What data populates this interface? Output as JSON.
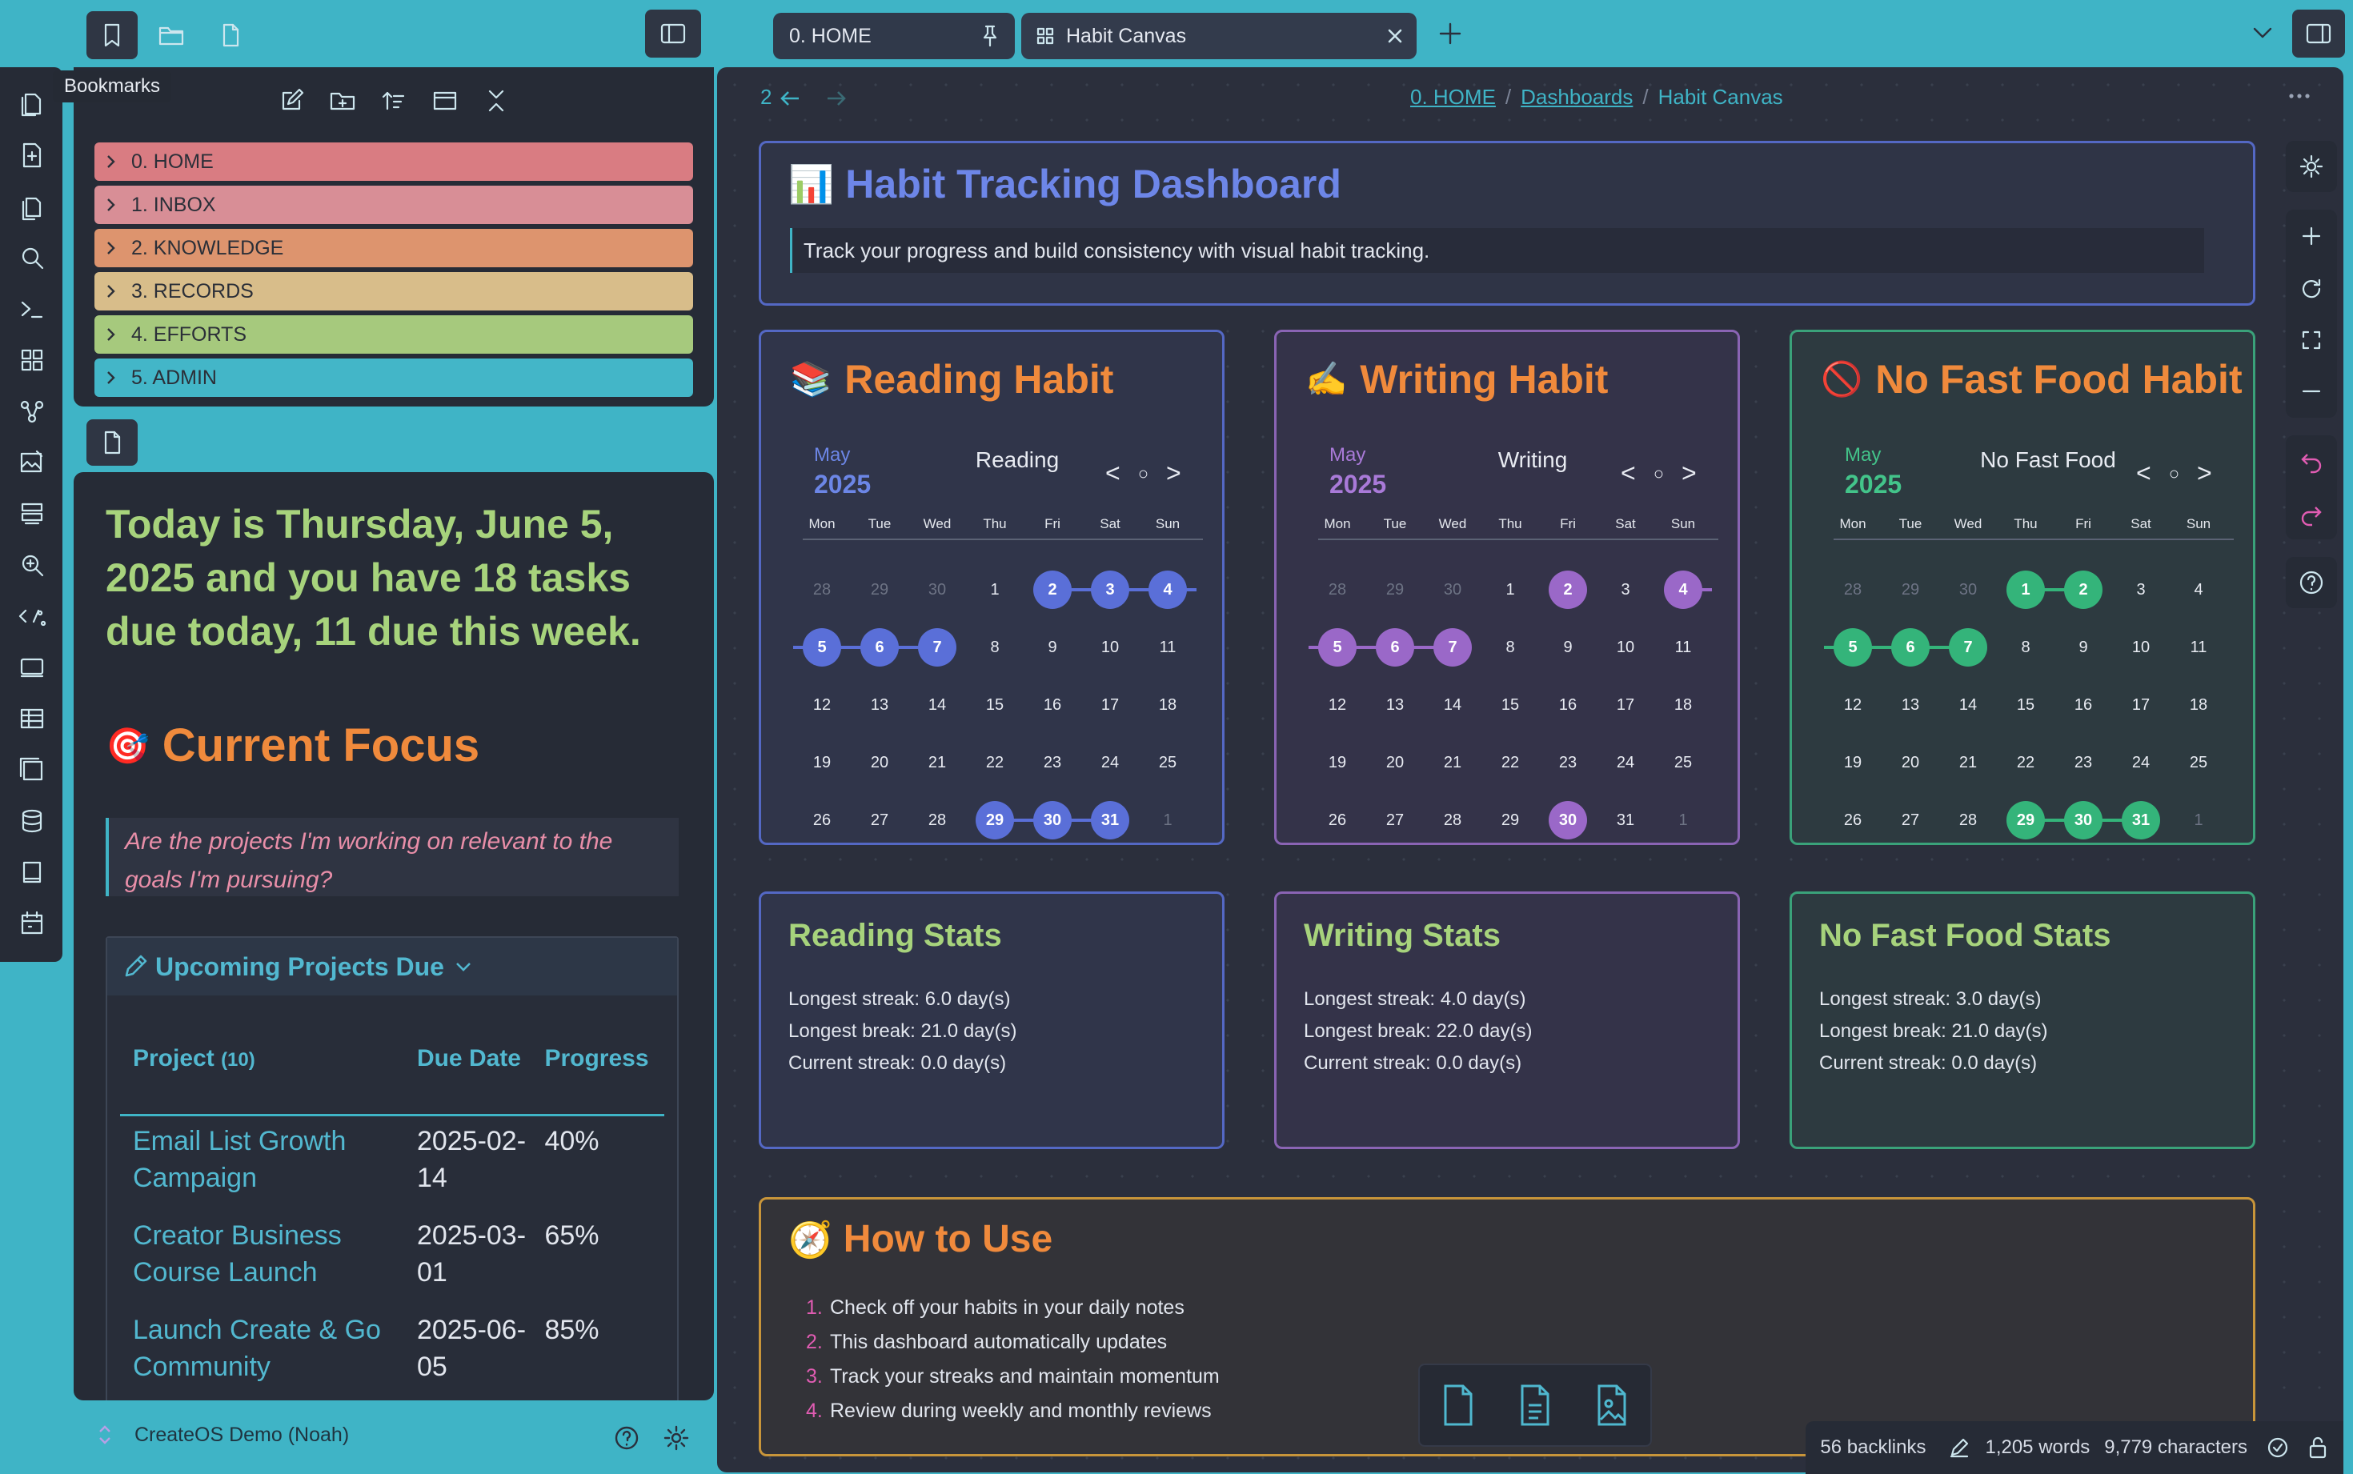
{
  "tooltip": "Bookmarks",
  "tabs": [
    {
      "label": "0. HOME",
      "pinned": true
    },
    {
      "label": "Habit Canvas",
      "closable": true
    }
  ],
  "bookmarks": [
    {
      "label": "0. HOME",
      "color": "#d97c82"
    },
    {
      "label": "1. INBOX",
      "color": "#d88e96"
    },
    {
      "label": "2. KNOWLEDGE",
      "color": "#dd946e"
    },
    {
      "label": "3. RECORDS",
      "color": "#d8bd8a"
    },
    {
      "label": "4. EFFORTS",
      "color": "#a6c97d"
    },
    {
      "label": "5. ADMIN",
      "color": "#43b6c8"
    }
  ],
  "note": {
    "today": "Today is Thursday, June 5, 2025 and you have 18 tasks due today, 11 due this week.",
    "focus_emoji": "🎯",
    "focus_title": "Current Focus",
    "quote": "Are the projects I'm working on relevant to the goals I'm pursuing?",
    "upcoming_title": "Upcoming Projects Due",
    "table": {
      "headers": [
        "Project",
        "Due Date",
        "Progress"
      ],
      "count": "(10)",
      "rows": [
        {
          "project": "Email List Growth Campaign",
          "due": "2025-02-14",
          "progress": "40%"
        },
        {
          "project": "Creator Business Course Launch",
          "due": "2025-03-01",
          "progress": "65%"
        },
        {
          "project": "Launch Create & Go Community",
          "due": "2025-06-05",
          "progress": "85%"
        }
      ]
    }
  },
  "vault_name": "CreateOS Demo (Noah)",
  "nav": {
    "back_count": "2"
  },
  "breadcrumb": [
    "0. HOME",
    "Dashboards",
    "Habit Canvas"
  ],
  "header_card": {
    "emoji": "📊",
    "title": "Habit Tracking Dashboard",
    "subtitle": "Track your progress and build consistency with visual habit tracking."
  },
  "weekdays": [
    "Mon",
    "Tue",
    "Wed",
    "Thu",
    "Fri",
    "Sat",
    "Sun"
  ],
  "habits": [
    {
      "emoji": "📚",
      "title": "Reading Habit",
      "cal_title": "Reading",
      "month": "May",
      "year": "2025",
      "accent": "#5a6fd8",
      "border": "#5468c4",
      "bg": "#30354a",
      "year_color": "#6c86e6",
      "marked": [
        2,
        3,
        4,
        5,
        6,
        7,
        29,
        30,
        31
      ],
      "stats_title": "Reading Stats",
      "stats": [
        "Longest streak: 6.0 day(s)",
        "Longest break: 21.0 day(s)",
        "Current streak: 0.0 day(s)"
      ]
    },
    {
      "emoji": "✍️",
      "title": "Writing Habit",
      "cal_title": "Writing",
      "month": "May",
      "year": "2025",
      "accent": "#9a68c8",
      "border": "#8a64b4",
      "bg": "#343349",
      "year_color": "#a97ad8",
      "marked": [
        2,
        4,
        5,
        6,
        7,
        30
      ],
      "stats_title": "Writing Stats",
      "stats": [
        "Longest streak: 4.0 day(s)",
        "Longest break: 22.0 day(s)",
        "Current streak: 0.0 day(s)"
      ]
    },
    {
      "emoji": "🚫",
      "title": "No Fast Food Habit",
      "cal_title": "No Fast Food",
      "month": "May",
      "year": "2025",
      "accent": "#34b47a",
      "border": "#3aa27a",
      "bg": "#2d3a40",
      "year_color": "#43c48a",
      "marked": [
        1,
        2,
        5,
        6,
        7,
        29,
        30,
        31
      ],
      "stats_title": "No Fast Food Stats",
      "stats": [
        "Longest streak: 3.0 day(s)",
        "Longest break: 21.0 day(s)",
        "Current streak: 0.0 day(s)"
      ]
    }
  ],
  "calendar": {
    "weeks": [
      [
        28,
        29,
        30,
        1,
        2,
        3,
        4
      ],
      [
        5,
        6,
        7,
        8,
        9,
        10,
        11
      ],
      [
        12,
        13,
        14,
        15,
        16,
        17,
        18
      ],
      [
        19,
        20,
        21,
        22,
        23,
        24,
        25
      ],
      [
        26,
        27,
        28,
        29,
        30,
        31,
        1
      ]
    ],
    "prev": "<",
    "today": "○",
    "next": ">"
  },
  "howto": {
    "emoji": "🧭",
    "title": "How to Use",
    "items": [
      "Check off your habits in your daily notes",
      "This dashboard automatically updates",
      "Track your streaks and maintain momentum",
      "Review during weekly and monthly reviews"
    ]
  },
  "status": {
    "backlinks": "56 backlinks",
    "words": "1,205 words",
    "chars": "9,779 characters"
  },
  "colors": {
    "accent_orange": "#f08a3c",
    "green_heading": "#a7d37c",
    "link": "#3fb4c6"
  }
}
